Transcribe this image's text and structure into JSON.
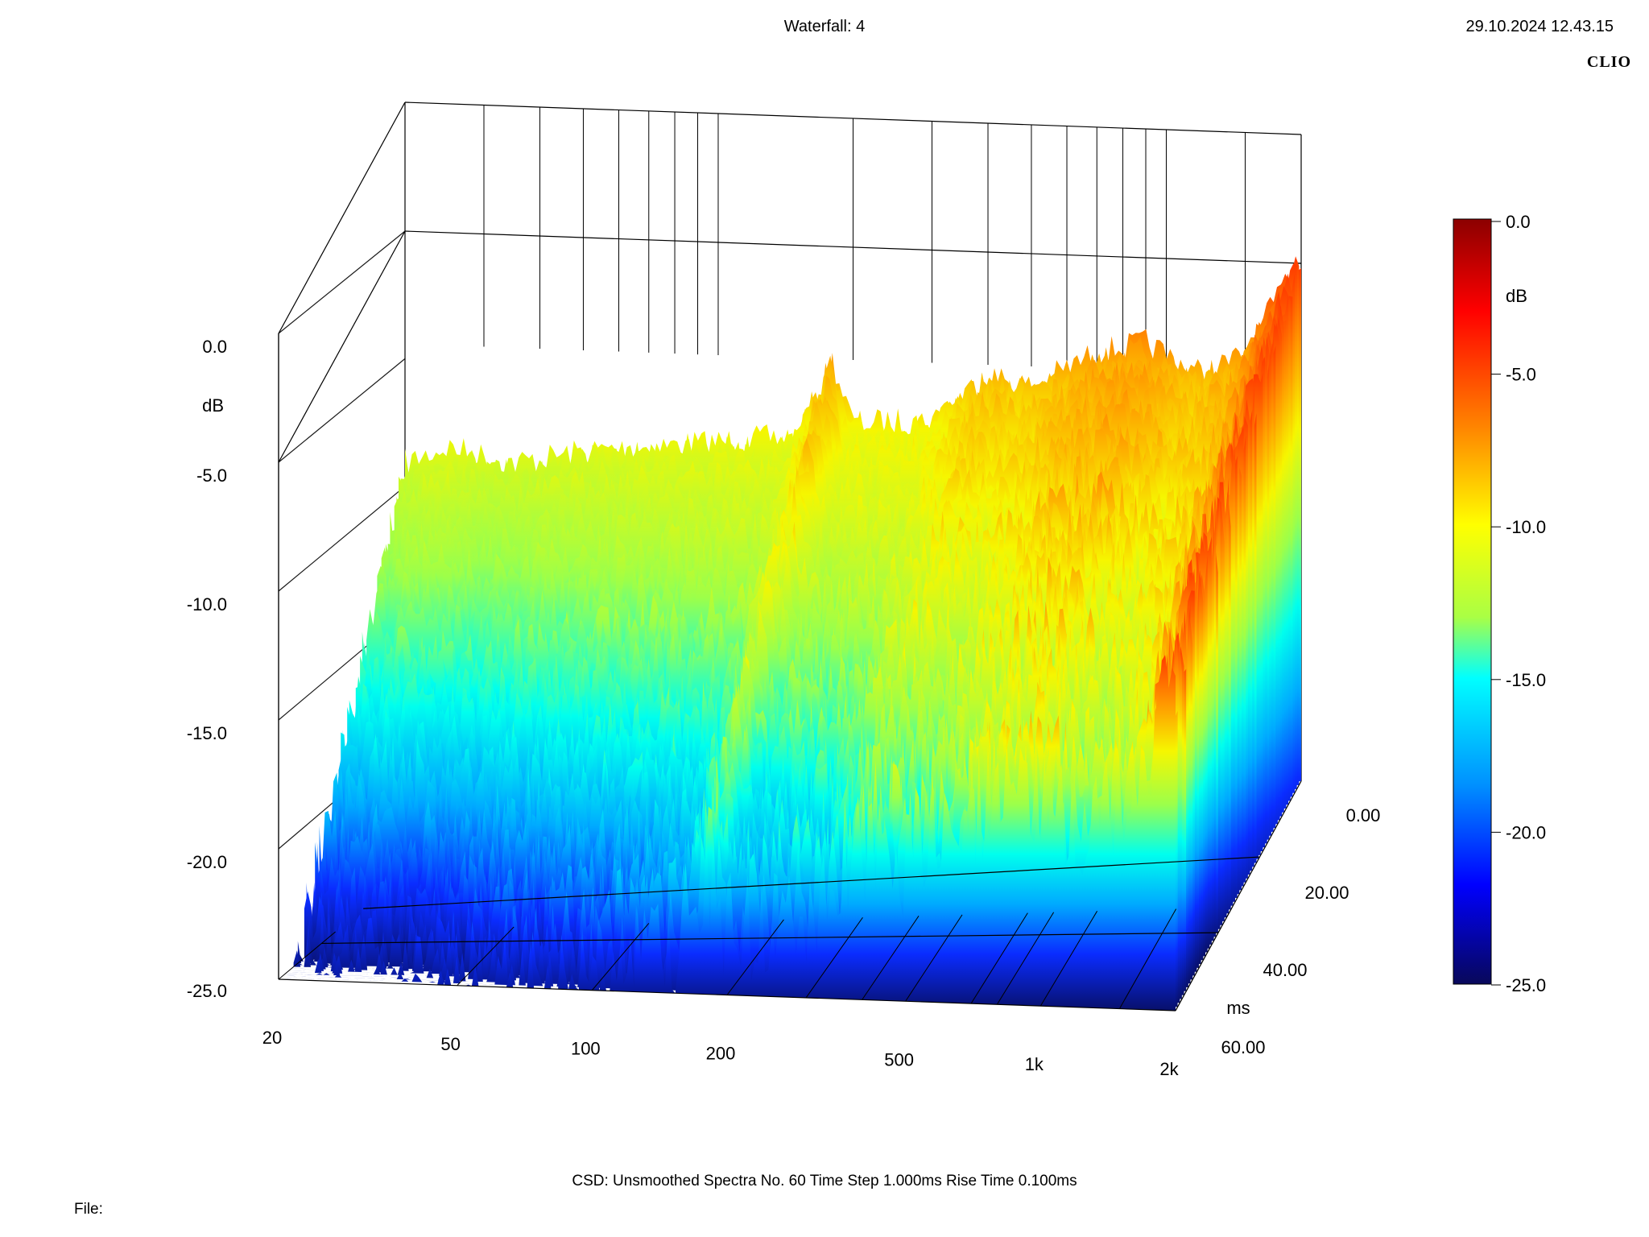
{
  "header": {
    "title": "Waterfall: 4",
    "timestamp": "29.10.2024 12.43.15",
    "brand": "CLIO"
  },
  "footer": {
    "csd_info": "CSD:   Unsmoothed   Spectra No. 60   Time Step 1.000ms   Rise Time 0.100ms",
    "file_label": "File:"
  },
  "chart_data": {
    "type": "waterfall",
    "title": "Waterfall: 4",
    "x_axis": {
      "label": "",
      "scale": "log",
      "range": [
        20,
        2000
      ],
      "ticks": [
        {
          "value": 20,
          "label": "20"
        },
        {
          "value": 50,
          "label": "50"
        },
        {
          "value": 100,
          "label": "100"
        },
        {
          "value": 200,
          "label": "200"
        },
        {
          "value": 500,
          "label": "500"
        },
        {
          "value": 1000,
          "label": "1k"
        },
        {
          "value": 2000,
          "label": "2k"
        }
      ]
    },
    "z_axis": {
      "label": "ms",
      "range": [
        0,
        60
      ],
      "ticks": [
        "0.00",
        "20.00",
        "40.00",
        "60.00"
      ]
    },
    "y_axis": {
      "label": "dB",
      "range": [
        -25,
        0
      ],
      "ticks": [
        "0.0",
        "-5.0",
        "-10.0",
        "-15.0",
        "-20.0",
        "-25.0"
      ]
    },
    "colorbar": {
      "label": "dB",
      "range": [
        -25,
        0
      ],
      "ticks": [
        "0.0",
        "-5.0",
        "-10.0",
        "-15.0",
        "-20.0",
        "-25.0"
      ],
      "colors": [
        "#08085a",
        "#0a0aff",
        "#00c8ff",
        "#00ffff",
        "#ffff00",
        "#ff7a00",
        "#ff0000",
        "#8b0000"
      ]
    },
    "spectra_count": 60,
    "time_step_ms": 1.0,
    "rise_time_ms": 0.1,
    "first_slice_db": [
      {
        "freq": 20,
        "db": -6.5
      },
      {
        "freq": 25,
        "db": -6.0
      },
      {
        "freq": 35,
        "db": -7.0
      },
      {
        "freq": 50,
        "db": -6.8
      },
      {
        "freq": 70,
        "db": -6.9
      },
      {
        "freq": 100,
        "db": -7.0
      },
      {
        "freq": 150,
        "db": -7.1
      },
      {
        "freq": 180,
        "db": -4.0
      },
      {
        "freq": 200,
        "db": -6.8
      },
      {
        "freq": 300,
        "db": -7.0
      },
      {
        "freq": 400,
        "db": -5.3
      },
      {
        "freq": 500,
        "db": -6.0
      },
      {
        "freq": 700,
        "db": -4.8
      },
      {
        "freq": 900,
        "db": -4.6
      },
      {
        "freq": 1200,
        "db": -6.2
      },
      {
        "freq": 1500,
        "db": -5.6
      },
      {
        "freq": 2000,
        "db": -1.5
      }
    ],
    "grid": true
  }
}
